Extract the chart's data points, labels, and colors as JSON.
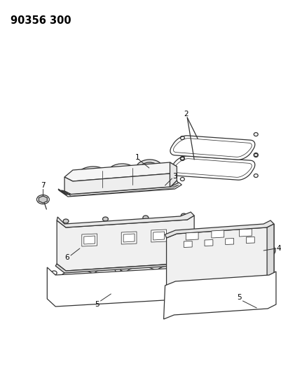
{
  "title": "90356 300",
  "background_color": "#ffffff",
  "fig_width": 4.01,
  "fig_height": 5.33,
  "dpi": 100,
  "line_color": "#333333",
  "line_width": 0.9
}
